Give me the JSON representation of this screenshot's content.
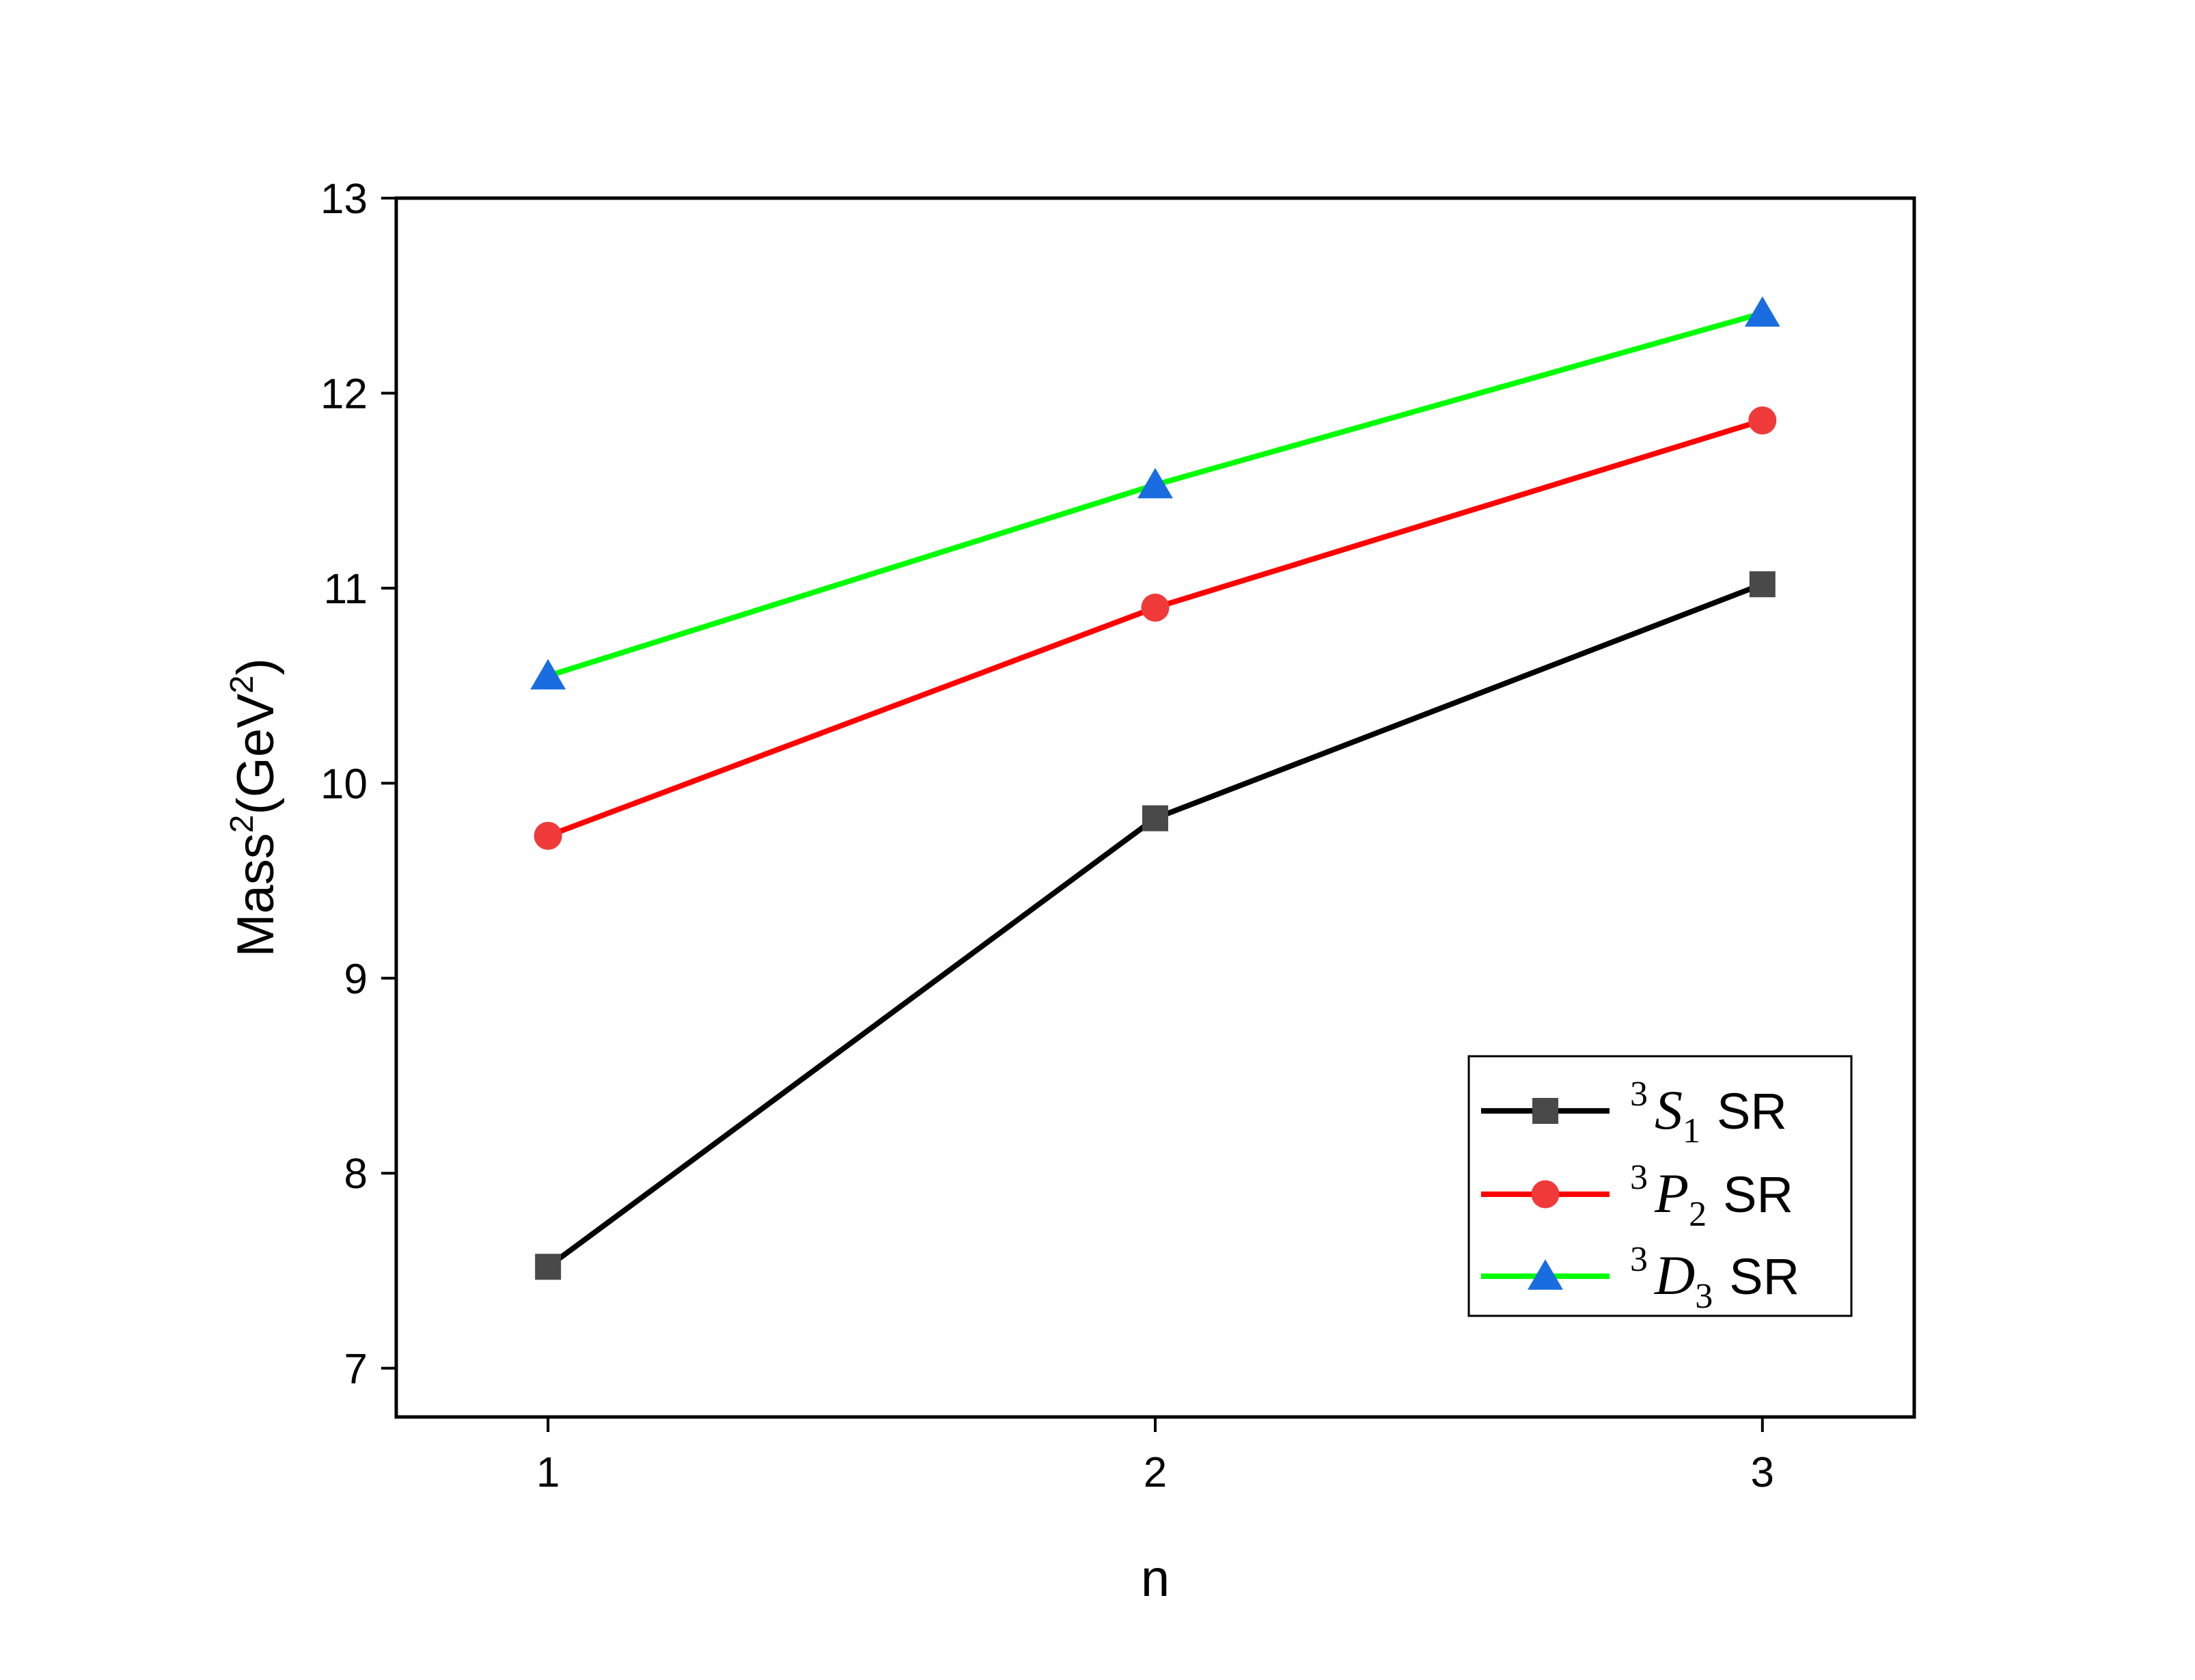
{
  "chart_data": {
    "type": "line",
    "title": "",
    "xlabel": "n",
    "ylabel": {
      "base": "Mass",
      "sup": "2",
      "unit_prefix": "(GeV",
      "unit_sup": "2",
      "unit_suffix": ")"
    },
    "x": [
      1,
      2,
      3
    ],
    "xticks": [
      "1",
      "2",
      "3"
    ],
    "xlim": [
      0.75,
      3.25
    ],
    "ylim": [
      6.75,
      13
    ],
    "yticks": [
      "7",
      "8",
      "9",
      "10",
      "11",
      "12",
      "13"
    ],
    "grid": false,
    "legend_position": "bottom-right",
    "series": [
      {
        "name": {
          "sup": "3",
          "letter": "S",
          "sub": "1",
          "suffix": "SR"
        },
        "values": [
          7.52,
          9.82,
          11.02
        ],
        "line_color": "#000000",
        "marker": "square",
        "marker_color": "#494949"
      },
      {
        "name": {
          "sup": "3",
          "letter": "P",
          "sub": "2",
          "suffix": "SR"
        },
        "values": [
          9.73,
          10.9,
          11.86
        ],
        "line_color": "#ff0000",
        "marker": "circle",
        "marker_color": "#f03a3a"
      },
      {
        "name": {
          "sup": "3",
          "letter": "D",
          "sub": "3",
          "suffix": "SR"
        },
        "values": [
          10.55,
          11.53,
          12.41
        ],
        "line_color": "#00ff00",
        "marker": "triangle",
        "marker_color": "#1a6de0"
      }
    ]
  }
}
